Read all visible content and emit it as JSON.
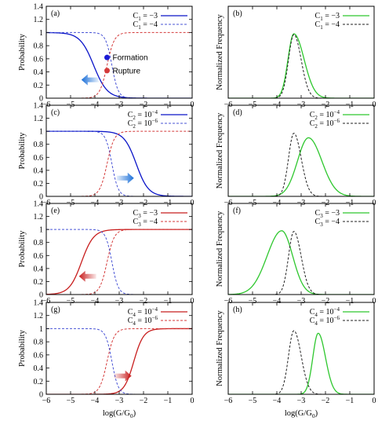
{
  "chart_data": [
    {
      "panel": "(a)",
      "type": "line",
      "kind": "prob",
      "ylabel": "Probability",
      "xlabel": "",
      "xlim": [
        -6,
        0
      ],
      "ylim": [
        0,
        1.4
      ],
      "xticks": [
        -6,
        -5,
        -4,
        -3,
        -2,
        -1,
        0
      ],
      "yticks": [
        0,
        0.2,
        0.4,
        0.6,
        0.8,
        1,
        1.2,
        1.4
      ],
      "series": [
        {
          "name": "C1 = −3",
          "legend_base": "C",
          "legend_sub": "1",
          "legend_rhs": " = −3",
          "color": "#0a14c8",
          "dash": "solid",
          "form": "decreasing",
          "center": -4.05,
          "width": 0.28
        },
        {
          "name": "C1 = −4",
          "legend_base": "C",
          "legend_sub": "1",
          "legend_rhs": " = −4",
          "color": "#4a55d6",
          "dash": "dashed",
          "form": "decreasing",
          "center": -3.3,
          "width": 0.13
        },
        {
          "name": "",
          "color": "#d43a3a",
          "dash": "dashed",
          "form": "increasing",
          "center": -3.5,
          "width": 0.15
        }
      ],
      "arrow": {
        "direction": "left",
        "x": -4.2,
        "y": 0.28,
        "color": "#1a6fd8"
      },
      "annotations": [
        {
          "text": "Formation",
          "x": -3.5,
          "y": 0.62,
          "marker_color": "#1b1bd6"
        },
        {
          "text": "Rupture",
          "x": -3.5,
          "y": 0.42,
          "marker_color": "#d43a3a"
        }
      ]
    },
    {
      "panel": "(b)",
      "type": "line",
      "kind": "freq",
      "ylabel": "Normalized Frequency",
      "xlabel": "",
      "xlim": [
        -6,
        0
      ],
      "ylim": [
        0,
        1.4
      ],
      "xticks": [
        -6,
        -5,
        -4,
        -3,
        -2,
        -1,
        0
      ],
      "series": [
        {
          "name": "C1 = −3",
          "legend_base": "C",
          "legend_sub": "1",
          "legend_rhs": " = −3",
          "color": "#2ec72e",
          "dash": "solid",
          "peak_x": -3.3,
          "sigma_left": 0.24,
          "sigma_right": 0.42,
          "height": 0.98
        },
        {
          "name": "C1 = −4",
          "legend_base": "C",
          "legend_sub": "1",
          "legend_rhs": " = −4",
          "color": "#222222",
          "dash": "dashed",
          "peak_x": -3.3,
          "sigma_left": 0.22,
          "sigma_right": 0.3,
          "height": 0.97
        }
      ]
    },
    {
      "panel": "(c)",
      "type": "line",
      "kind": "prob",
      "ylabel": "Probability",
      "xlabel": "",
      "xlim": [
        -6,
        0
      ],
      "ylim": [
        0,
        1.4
      ],
      "xticks": [
        -6,
        -5,
        -4,
        -3,
        -2,
        -1,
        0
      ],
      "yticks": [
        0,
        0.2,
        0.4,
        0.6,
        0.8,
        1,
        1.2,
        1.4
      ],
      "series": [
        {
          "name": "C2 = 10−4",
          "legend_base": "C",
          "legend_sub": "2",
          "legend_rhs": " = 10",
          "legend_sup": "−4",
          "color": "#0a14c8",
          "dash": "solid",
          "form": "decreasing",
          "center": -2.3,
          "width": 0.25
        },
        {
          "name": "C2 = 10−6",
          "legend_base": "C",
          "legend_sub": "2",
          "legend_rhs": " = 10",
          "legend_sup": "−6",
          "color": "#4a55d6",
          "dash": "dashed",
          "form": "decreasing",
          "center": -3.3,
          "width": 0.13
        },
        {
          "name": "",
          "color": "#d43a3a",
          "dash": "dashed",
          "form": "increasing",
          "center": -3.5,
          "width": 0.15
        }
      ],
      "arrow": {
        "direction": "right",
        "x": -2.75,
        "y": 0.28,
        "color": "#1a6fd8"
      }
    },
    {
      "panel": "(d)",
      "type": "line",
      "kind": "freq",
      "ylabel": "Normalized Frequency",
      "xlabel": "",
      "xlim": [
        -6,
        0
      ],
      "ylim": [
        0,
        1.4
      ],
      "xticks": [
        -6,
        -5,
        -4,
        -3,
        -2,
        -1,
        0
      ],
      "series": [
        {
          "name": "C2 = 10−4",
          "legend_base": "C",
          "legend_sub": "2",
          "legend_rhs": " = 10",
          "legend_sup": "−4",
          "color": "#2ec72e",
          "dash": "solid",
          "peak_x": -2.7,
          "sigma_left": 0.45,
          "sigma_right": 0.55,
          "height": 0.9
        },
        {
          "name": "C2 = 10−6",
          "legend_base": "C",
          "legend_sub": "2",
          "legend_rhs": " = 10",
          "legend_sup": "−6",
          "color": "#222222",
          "dash": "dashed",
          "peak_x": -3.3,
          "sigma_left": 0.22,
          "sigma_right": 0.3,
          "height": 0.97
        }
      ]
    },
    {
      "panel": "(e)",
      "type": "line",
      "kind": "prob",
      "ylabel": "Probability",
      "xlabel": "",
      "xlim": [
        -6,
        0
      ],
      "ylim": [
        0,
        1.4
      ],
      "xticks": [
        -6,
        -5,
        -4,
        -3,
        -2,
        -1,
        0
      ],
      "yticks": [
        0,
        0.2,
        0.4,
        0.6,
        0.8,
        1,
        1.2,
        1.4
      ],
      "series": [
        {
          "name": "C3 = −3",
          "legend_base": "C",
          "legend_sub": "3",
          "legend_rhs": " = −3",
          "color": "#c81e1e",
          "dash": "solid",
          "form": "increasing",
          "center": -4.55,
          "width": 0.25
        },
        {
          "name": "C3 = −4",
          "legend_base": "C",
          "legend_sub": "3",
          "legend_rhs": " = −4",
          "color": "#d43a3a",
          "dash": "dashed",
          "form": "increasing",
          "center": -3.5,
          "width": 0.15
        },
        {
          "name": "",
          "color": "#4a55d6",
          "dash": "dashed",
          "form": "decreasing",
          "center": -3.3,
          "width": 0.13
        }
      ],
      "arrow": {
        "direction": "left",
        "x": -4.3,
        "y": 0.28,
        "color": "#c81e1e"
      }
    },
    {
      "panel": "(f)",
      "type": "line",
      "kind": "freq",
      "ylabel": "Normalized Frequency",
      "xlabel": "",
      "xlim": [
        -6,
        0
      ],
      "ylim": [
        0,
        1.4
      ],
      "xticks": [
        -6,
        -5,
        -4,
        -3,
        -2,
        -1,
        0
      ],
      "series": [
        {
          "name": "C3 = −3",
          "legend_base": "C",
          "legend_sub": "3",
          "legend_rhs": " = −3",
          "color": "#2ec72e",
          "dash": "solid",
          "peak_x": -3.8,
          "sigma_left": 0.6,
          "sigma_right": 0.45,
          "height": 0.98
        },
        {
          "name": "C3 = −4",
          "legend_base": "C",
          "legend_sub": "3",
          "legend_rhs": " = −4",
          "color": "#222222",
          "dash": "dashed",
          "peak_x": -3.3,
          "sigma_left": 0.22,
          "sigma_right": 0.3,
          "height": 0.97
        }
      ]
    },
    {
      "panel": "(g)",
      "type": "line",
      "kind": "prob",
      "ylabel": "Probability",
      "xlabel": "log(G/G0)",
      "xlabel_base": "log(G/G",
      "xlabel_sub": "0",
      "xlabel_end": ")",
      "xlim": [
        -6,
        0
      ],
      "ylim": [
        0,
        1.4
      ],
      "xticks": [
        -6,
        -5,
        -4,
        -3,
        -2,
        -1,
        0
      ],
      "yticks": [
        0,
        0.2,
        0.4,
        0.6,
        0.8,
        1,
        1.2,
        1.4
      ],
      "series": [
        {
          "name": "C4 = 10−4",
          "legend_base": "C",
          "legend_sub": "4",
          "legend_rhs": " = 10",
          "legend_sup": "−4",
          "color": "#c81e1e",
          "dash": "solid",
          "form": "increasing",
          "center": -2.4,
          "width": 0.2
        },
        {
          "name": "C4 = 10−6",
          "legend_base": "C",
          "legend_sub": "4",
          "legend_rhs": " = 10",
          "legend_sup": "−6",
          "color": "#d43a3a",
          "dash": "dashed",
          "form": "increasing",
          "center": -3.5,
          "width": 0.15
        },
        {
          "name": "",
          "color": "#4a55d6",
          "dash": "dashed",
          "form": "decreasing",
          "center": -3.3,
          "width": 0.13
        }
      ],
      "arrow": {
        "direction": "right",
        "x": -2.85,
        "y": 0.28,
        "color": "#c81e1e"
      }
    },
    {
      "panel": "(h)",
      "type": "line",
      "kind": "freq",
      "ylabel": "Normalized Frequency",
      "xlabel": "log(G/G0)",
      "xlabel_base": "log(G/G",
      "xlabel_sub": "0",
      "xlabel_end": ")",
      "xlim": [
        -6,
        0
      ],
      "ylim": [
        0,
        1.4
      ],
      "xticks": [
        -6,
        -5,
        -4,
        -3,
        -2,
        -1,
        0
      ],
      "series": [
        {
          "name": "C4 = 10−4",
          "legend_base": "C",
          "legend_sub": "4",
          "legend_rhs": " = 10",
          "legend_sup": "−4",
          "color": "#2ec72e",
          "dash": "solid",
          "peak_x": -2.3,
          "sigma_left": 0.22,
          "sigma_right": 0.3,
          "height": 0.93
        },
        {
          "name": "C4 = 10−6",
          "legend_base": "C",
          "legend_sub": "4",
          "legend_rhs": " = 10",
          "legend_sup": "−6",
          "color": "#222222",
          "dash": "dashed",
          "peak_x": -3.3,
          "sigma_left": 0.22,
          "sigma_right": 0.3,
          "height": 0.97
        }
      ]
    }
  ]
}
